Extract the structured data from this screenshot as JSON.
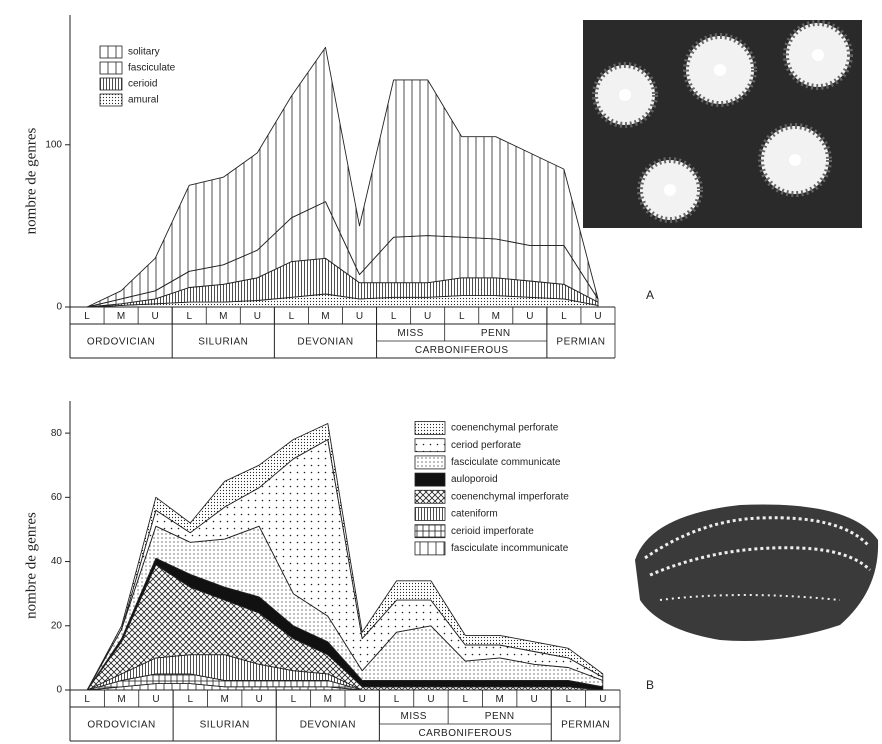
{
  "chart_data": [
    {
      "type": "area",
      "stacked": true,
      "panel_label": "A",
      "ylabel": "nombre de genres",
      "ylim": [
        0,
        180
      ],
      "yticks": [
        0,
        100
      ],
      "legend": "upper left",
      "periods": [
        {
          "label": "ORDOVICIAN",
          "categories": [
            "L",
            "M",
            "U"
          ]
        },
        {
          "label": "SILURIAN",
          "categories": [
            "L",
            "M",
            "U"
          ]
        },
        {
          "label": "DEVONIAN",
          "categories": [
            "L",
            "M",
            "U"
          ]
        },
        {
          "label": "CARBONIFEROUS",
          "periods": [
            {
              "label": "MISS",
              "categories": [
                "L",
                "U"
              ]
            },
            {
              "label": "PENN",
              "categories": [
                "L",
                "M",
                "U"
              ]
            }
          ]
        },
        {
          "label": "PERMIAN",
          "categories": [
            "L",
            "U"
          ]
        }
      ],
      "series": [
        {
          "name": "solitary",
          "color": "#222222",
          "pattern": "vertical",
          "values": [
            0,
            5,
            20,
            53,
            54,
            60,
            75,
            95,
            30,
            97,
            96,
            62,
            63,
            57,
            47,
            0
          ]
        },
        {
          "name": "fasciculate",
          "color": "#222222",
          "pattern": "vertical",
          "values": [
            0,
            3,
            5,
            10,
            12,
            17,
            27,
            35,
            5,
            28,
            29,
            25,
            24,
            22,
            24,
            2
          ]
        },
        {
          "name": "cerioid",
          "color": "#222222",
          "pattern": "vertical-dense",
          "values": [
            0,
            1,
            3,
            9,
            11,
            14,
            22,
            22,
            10,
            9,
            9,
            11,
            11,
            10,
            9,
            2
          ]
        },
        {
          "name": "amural",
          "color": "#222222",
          "pattern": "dots-dense",
          "values": [
            0,
            1,
            2,
            3,
            3,
            4,
            6,
            8,
            5,
            6,
            6,
            7,
            7,
            6,
            5,
            1
          ]
        }
      ]
    },
    {
      "type": "area",
      "stacked": true,
      "panel_label": "B",
      "ylabel": "nombre de genres",
      "ylim": [
        0,
        90
      ],
      "yticks": [
        0,
        20,
        40,
        60,
        80
      ],
      "legend": "upper right",
      "periods": [
        {
          "label": "ORDOVICIAN",
          "categories": [
            "L",
            "M",
            "U"
          ]
        },
        {
          "label": "SILURIAN",
          "categories": [
            "L",
            "M",
            "U"
          ]
        },
        {
          "label": "DEVONIAN",
          "categories": [
            "L",
            "M",
            "U"
          ]
        },
        {
          "label": "CARBONIFEROUS",
          "periods": [
            {
              "label": "MISS",
              "categories": [
                "L",
                "U"
              ]
            },
            {
              "label": "PENN",
              "categories": [
                "L",
                "M",
                "U"
              ]
            }
          ]
        },
        {
          "label": "PERMIAN",
          "categories": [
            "L",
            "U"
          ]
        }
      ],
      "series": [
        {
          "name": "coenenchymal perforate",
          "color": "#222222",
          "pattern": "dots-dense",
          "values": [
            0,
            1,
            4,
            3,
            8,
            7,
            6,
            5,
            2,
            6,
            6,
            3,
            3,
            3,
            3,
            1
          ]
        },
        {
          "name": "ceriod perforate",
          "color": "#222222",
          "pattern": "dots-sparse",
          "values": [
            0,
            0,
            5,
            3,
            10,
            12,
            42,
            55,
            10,
            10,
            8,
            5,
            4,
            4,
            3,
            1
          ]
        },
        {
          "name": "fasciculate communicate",
          "color": "#222222",
          "pattern": "dots",
          "values": [
            0,
            3,
            10,
            10,
            15,
            22,
            10,
            8,
            3,
            15,
            17,
            6,
            7,
            5,
            4,
            2
          ]
        },
        {
          "name": "auloporoid",
          "color": "#111111",
          "pattern": "solid",
          "values": [
            0,
            1,
            2,
            4,
            4,
            5,
            4,
            4,
            2,
            2,
            2,
            2,
            2,
            2,
            2,
            1
          ]
        },
        {
          "name": "coenenchymal imperforate",
          "color": "#222222",
          "pattern": "crosshatch",
          "values": [
            0,
            10,
            29,
            21,
            17,
            16,
            10,
            6,
            1,
            1,
            1,
            1,
            1,
            1,
            1,
            0
          ]
        },
        {
          "name": "cateniform",
          "color": "#222222",
          "pattern": "vertical-dense",
          "values": [
            0,
            2,
            5,
            6,
            8,
            5,
            3,
            2,
            0,
            0,
            0,
            0,
            0,
            0,
            0,
            0
          ]
        },
        {
          "name": "cerioid imperforate",
          "color": "#222222",
          "pattern": "grid",
          "values": [
            0,
            2,
            3,
            3,
            2,
            2,
            2,
            2,
            0,
            0,
            0,
            0,
            0,
            0,
            0,
            0
          ]
        },
        {
          "name": "fasciculate incommunicate",
          "color": "#222222",
          "pattern": "vertical",
          "values": [
            0,
            1,
            2,
            2,
            1,
            1,
            1,
            1,
            0,
            0,
            0,
            0,
            0,
            0,
            0,
            0
          ]
        }
      ]
    }
  ]
}
